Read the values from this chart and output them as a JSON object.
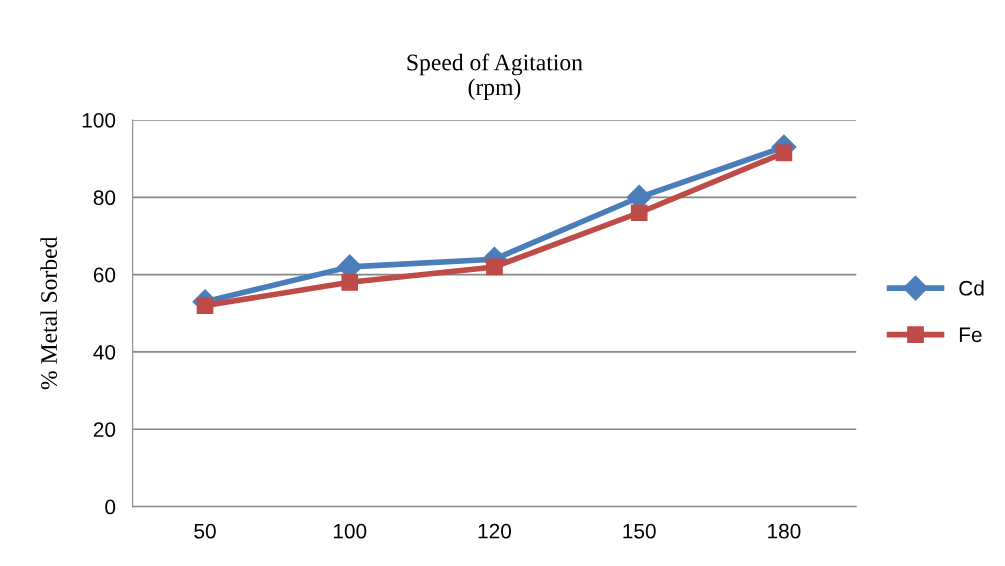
{
  "chart_data": {
    "type": "line",
    "title": "Speed of Agitation\n(rpm)",
    "ylabel": "% Metal Sorbed",
    "categories": [
      "50",
      "100",
      "120",
      "150",
      "180"
    ],
    "series": [
      {
        "name": "Cd",
        "color": "#4a7ebb",
        "marker": "diamond",
        "values": [
          53,
          62,
          64,
          80,
          93
        ]
      },
      {
        "name": "Fe",
        "color": "#be4b48",
        "marker": "square",
        "values": [
          52,
          58,
          62,
          76,
          91.5
        ]
      }
    ],
    "ylim": [
      0,
      100
    ],
    "yticks": [
      0,
      20,
      40,
      60,
      80,
      100
    ],
    "grid": "y",
    "legend": "right"
  }
}
